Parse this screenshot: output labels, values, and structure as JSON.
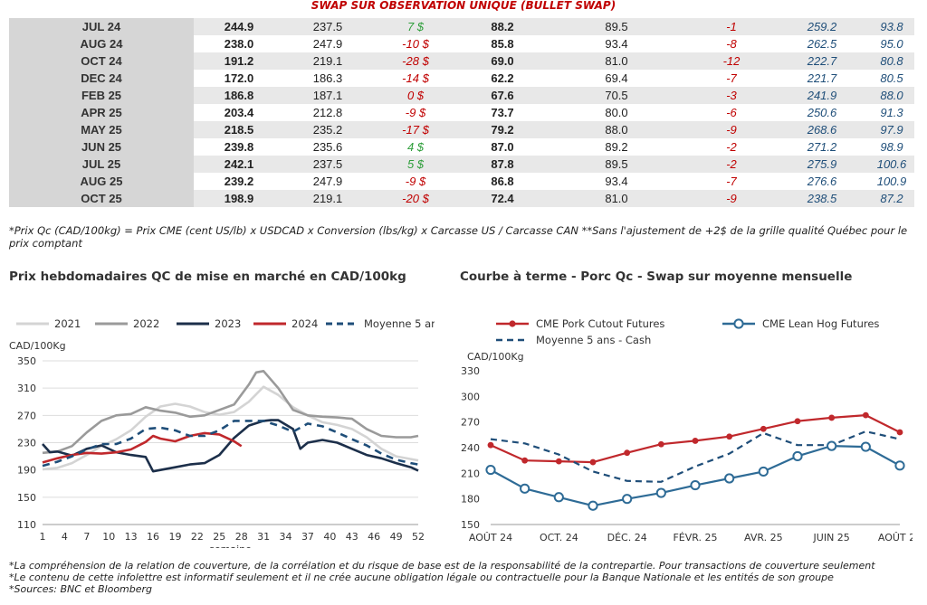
{
  "swap_title": "SWAP SUR OBSERVATION UNIQUE (BULLET SWAP)",
  "table": {
    "rows": [
      [
        "JUL 24",
        "244.9",
        "237.5",
        "7 $",
        "88.2",
        "89.5",
        "-1",
        "259.2",
        "93.8"
      ],
      [
        "AUG 24",
        "238.0",
        "247.9",
        "-10 $",
        "85.8",
        "93.4",
        "-8",
        "262.5",
        "95.0"
      ],
      [
        "OCT 24",
        "191.2",
        "219.1",
        "-28 $",
        "69.0",
        "81.0",
        "-12",
        "222.7",
        "80.8"
      ],
      [
        "DEC 24",
        "172.0",
        "186.3",
        "-14 $",
        "62.2",
        "69.4",
        "-7",
        "221.7",
        "80.5"
      ],
      [
        "FEB 25",
        "186.8",
        "187.1",
        "0 $",
        "67.6",
        "70.5",
        "-3",
        "241.9",
        "88.0"
      ],
      [
        "APR 25",
        "203.4",
        "212.8",
        "-9 $",
        "73.7",
        "80.0",
        "-6",
        "250.6",
        "91.3"
      ],
      [
        "MAY 25",
        "218.5",
        "235.2",
        "-17 $",
        "79.2",
        "88.0",
        "-9",
        "268.6",
        "97.9"
      ],
      [
        "JUN 25",
        "239.8",
        "235.6",
        "4 $",
        "87.0",
        "89.2",
        "-2",
        "271.2",
        "98.9"
      ],
      [
        "JUL 25",
        "242.1",
        "237.5",
        "5 $",
        "87.8",
        "89.5",
        "-2",
        "275.9",
        "100.6"
      ],
      [
        "AUG 25",
        "239.2",
        "247.9",
        "-9 $",
        "86.8",
        "93.4",
        "-7",
        "276.6",
        "100.9"
      ],
      [
        "OCT 25",
        "198.9",
        "219.1",
        "-20 $",
        "72.4",
        "81.0",
        "-9",
        "238.5",
        "87.2"
      ]
    ]
  },
  "note": "*Prix Qc (CAD/100kg) = Prix CME (cent US/lb) x USDCAD x Conversion (lbs/kg) x Carcasse US / Carcasse CAN **Sans l'ajustement de +2$ de la grille qualité Québec pour le prix comptant",
  "footnotes": [
    "*La compréhension de la relation de couverture, de la corrélation et du risque de base est de la responsabilité de la contrepartie. Pour transactions de couverture seulement",
    "*Le contenu de cette infolettre est informatif seulement et il ne crée aucune obligation légale ou contractuelle pour la Banque Nationale et les entités de son groupe",
    "*Sources: BNC et Bloomberg"
  ],
  "colors": {
    "c2021": "#d4d4d4",
    "c2022": "#9a9a9a",
    "c2023": "#1c2f4a",
    "c2024": "#c0282c",
    "cavg": "#1f4e79",
    "pork": "#c0282c",
    "hog": "#2e6b96",
    "grid": "#dddddd",
    "axis": "#9a9a9a"
  },
  "chart_data": [
    {
      "type": "line",
      "title": "Prix hebdomadaires QC de mise en marché en CAD/100kg",
      "ylabel": "CAD/100Kg",
      "xlabel": "semaine",
      "xlim": [
        1,
        52
      ],
      "ylim": [
        110,
        350
      ],
      "xticks": [
        1,
        4,
        7,
        10,
        13,
        16,
        19,
        22,
        25,
        28,
        31,
        34,
        37,
        40,
        43,
        46,
        49,
        52
      ],
      "yticks": [
        110,
        150,
        190,
        230,
        270,
        310,
        350
      ],
      "grid": true,
      "legend_position": "top",
      "series": [
        {
          "name": "2021",
          "style": "solid",
          "color_key": "c2021",
          "x": [
            1,
            3,
            5,
            7,
            9,
            11,
            13,
            15,
            17,
            19,
            21,
            23,
            25,
            27,
            29,
            31,
            33,
            35,
            37,
            39,
            41,
            43,
            45,
            47,
            49,
            51,
            52
          ],
          "y": [
            191,
            193,
            200,
            212,
            225,
            235,
            248,
            268,
            283,
            287,
            283,
            275,
            271,
            275,
            290,
            312,
            300,
            282,
            270,
            260,
            256,
            250,
            238,
            221,
            210,
            206,
            204
          ]
        },
        {
          "name": "2022",
          "style": "solid",
          "color_key": "c2022",
          "x": [
            1,
            3,
            5,
            7,
            9,
            11,
            13,
            15,
            17,
            19,
            21,
            23,
            25,
            27,
            29,
            30,
            31,
            33,
            35,
            37,
            39,
            41,
            43,
            45,
            47,
            49,
            51,
            52
          ],
          "y": [
            215,
            217,
            225,
            245,
            262,
            270,
            272,
            282,
            277,
            274,
            268,
            270,
            278,
            286,
            315,
            333,
            335,
            310,
            278,
            270,
            268,
            267,
            265,
            250,
            240,
            238,
            238,
            240
          ]
        },
        {
          "name": "2023",
          "style": "solid",
          "color_key": "c2023",
          "x": [
            1,
            2,
            3,
            5,
            7,
            9,
            11,
            13,
            15,
            16,
            17,
            19,
            21,
            23,
            25,
            27,
            29,
            31,
            32,
            33,
            35,
            36,
            37,
            39,
            41,
            43,
            45,
            47,
            49,
            51,
            52
          ],
          "y": [
            228,
            216,
            217,
            211,
            221,
            226,
            216,
            212,
            209,
            188,
            190,
            194,
            198,
            200,
            212,
            237,
            255,
            262,
            263,
            263,
            250,
            221,
            230,
            234,
            230,
            221,
            212,
            207,
            200,
            194,
            189
          ]
        },
        {
          "name": "2024",
          "style": "solid",
          "color_key": "c2024",
          "x": [
            1,
            3,
            5,
            7,
            9,
            11,
            13,
            15,
            16,
            17,
            19,
            21,
            23,
            25,
            27,
            28
          ],
          "y": [
            201,
            207,
            212,
            215,
            214,
            216,
            220,
            231,
            240,
            236,
            232,
            240,
            244,
            242,
            232,
            225
          ]
        },
        {
          "name": "Moyenne 5 ans",
          "style": "dashed",
          "color_key": "cavg",
          "x": [
            1,
            3,
            5,
            7,
            9,
            11,
            13,
            15,
            17,
            19,
            21,
            23,
            25,
            27,
            29,
            31,
            33,
            35,
            37,
            39,
            41,
            43,
            45,
            47,
            49,
            51,
            52
          ],
          "y": [
            196,
            202,
            210,
            220,
            228,
            228,
            236,
            250,
            252,
            248,
            240,
            240,
            248,
            262,
            262,
            262,
            255,
            246,
            258,
            254,
            245,
            235,
            226,
            214,
            205,
            200,
            198
          ]
        }
      ]
    },
    {
      "type": "line",
      "title": "Courbe à terme - Porc Qc - Swap sur moyenne mensuelle",
      "ylabel": "CAD/100Kg",
      "categories": [
        "AOÛT 24",
        "SEPT. 24",
        "OCT. 24",
        "NOV. 24",
        "DÉC. 24",
        "JANV. 25",
        "FÉVR. 25",
        "MARS 25",
        "AVR. 25",
        "MAI 25",
        "JUIN 25",
        "JUIL. 25",
        "AOÛT 25"
      ],
      "tick_labels": [
        "AOÛT 24",
        "OCT. 24",
        "DÉC. 24",
        "FÉVR. 25",
        "AVR. 25",
        "JUIN 25",
        "AOÛT 25"
      ],
      "ylim": [
        150,
        330
      ],
      "yticks": [
        150,
        180,
        210,
        240,
        270,
        300,
        330
      ],
      "grid": false,
      "legend_position": "top",
      "series": [
        {
          "name": "CME Pork Cutout Futures",
          "style": "solid-marker-filled",
          "color_key": "pork",
          "values": [
            243,
            225,
            224,
            223,
            234,
            244,
            248,
            253,
            262,
            271,
            275,
            278,
            258
          ]
        },
        {
          "name": "CME Lean Hog Futures",
          "style": "solid-marker-open",
          "color_key": "hog",
          "values": [
            214,
            192,
            182,
            172,
            180,
            187,
            196,
            204,
            212,
            230,
            242,
            241,
            219
          ]
        },
        {
          "name": "Moyenne 5 ans - Cash",
          "style": "dashed",
          "color_key": "cavg",
          "values": [
            250,
            245,
            232,
            212,
            201,
            200,
            218,
            233,
            257,
            243,
            243,
            259,
            250
          ]
        }
      ]
    }
  ]
}
